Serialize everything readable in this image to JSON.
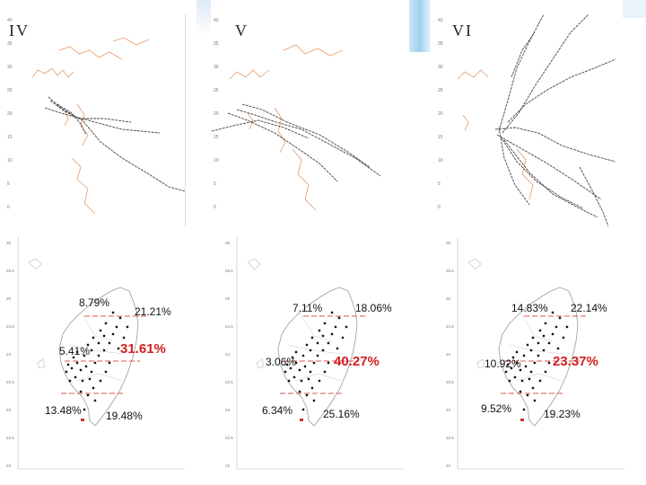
{
  "top_labels": [
    "IV",
    "V",
    "VI"
  ],
  "lat_ticks_top": [
    "40",
    "35",
    "30",
    "25",
    "20",
    "15",
    "10",
    "5",
    "0"
  ],
  "lat_ticks_bottom": [
    "26",
    "25.5",
    "25",
    "24.5",
    "24",
    "23.5",
    "23",
    "22.5",
    "22"
  ],
  "bottom_maps": [
    {
      "pct": [
        {
          "v": "8.79%",
          "red": false
        },
        {
          "v": "21.21%",
          "red": false
        },
        {
          "v": "5.41%",
          "red": false
        },
        {
          "v": "31.61%",
          "red": true
        },
        {
          "v": "13.48%",
          "red": false
        },
        {
          "v": "19.48%",
          "red": false
        }
      ]
    },
    {
      "pct": [
        {
          "v": "7.11%",
          "red": false
        },
        {
          "v": "18.06%",
          "red": false
        },
        {
          "v": "3.06%",
          "red": false
        },
        {
          "v": "40.27%",
          "red": true
        },
        {
          "v": "6.34%",
          "red": false
        },
        {
          "v": "25.16%",
          "red": false
        }
      ]
    },
    {
      "pct": [
        {
          "v": "14.83%",
          "red": false
        },
        {
          "v": "22.14%",
          "red": false
        },
        {
          "v": "10.92%",
          "red": false
        },
        {
          "v": "23.37%",
          "red": true
        },
        {
          "v": "9.52%",
          "red": false
        },
        {
          "v": "19.23%",
          "red": false
        }
      ]
    }
  ],
  "colors": {
    "coast": "#e39a6a",
    "track": "#444444",
    "divider": "#e05555",
    "red_text": "#d21f1f"
  }
}
